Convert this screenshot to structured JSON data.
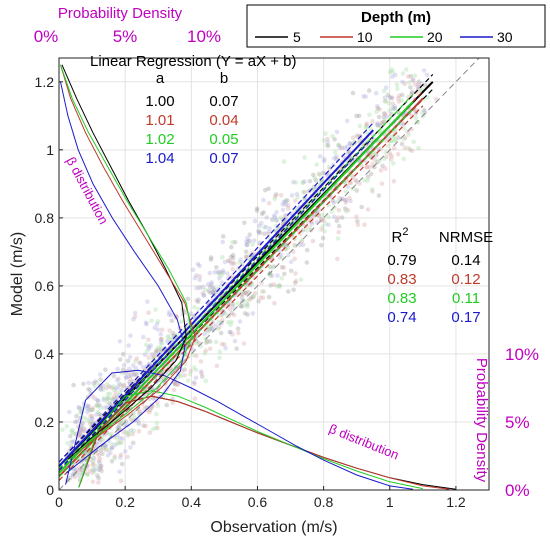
{
  "chart_data": {
    "type": "scatter",
    "xlabel": "Observation (m/s)",
    "ylabel": "Model (m/s)",
    "xlim": [
      0,
      1.3
    ],
    "ylim": [
      0,
      1.27
    ],
    "x_ticks": [
      0,
      0.2,
      0.4,
      0.6,
      0.8,
      1,
      1.2
    ],
    "y_ticks": [
      0,
      0.2,
      0.4,
      0.6,
      0.8,
      1,
      1.2
    ],
    "x_tick_labels": [
      "0",
      "0.2",
      "0.4",
      "0.6",
      "0.8",
      "1",
      "1.2"
    ],
    "y_tick_labels": [
      "0",
      "0.2",
      "0.4",
      "0.6",
      "0.8",
      "1",
      "1.2"
    ],
    "grid": true,
    "one_to_one_line": true,
    "legend": {
      "title": "Depth (m)",
      "placement": "top-right",
      "entries": [
        "5",
        "10",
        "20",
        "30"
      ]
    },
    "series_colors": [
      "#000000",
      "#c0392b",
      "#22cc22",
      "#1a1acc"
    ],
    "regression": {
      "title": "Linear Regression (Y = aX + b)",
      "col_a": "a",
      "col_b": "b",
      "rows": [
        {
          "a": "1.00",
          "b": "0.07"
        },
        {
          "a": "1.01",
          "b": "0.04"
        },
        {
          "a": "1.02",
          "b": "0.05"
        },
        {
          "a": "1.04",
          "b": "0.07"
        }
      ],
      "x_end": [
        1.13,
        1.1,
        1.07,
        0.95
      ]
    },
    "stats": {
      "r2_label": "R",
      "r2_sup": "2",
      "nrmse_label": "NRMSE",
      "rows": [
        {
          "r2": "0.79",
          "nrmse": "0.14"
        },
        {
          "r2": "0.83",
          "nrmse": "0.12"
        },
        {
          "r2": "0.83",
          "nrmse": "0.11"
        },
        {
          "r2": "0.74",
          "nrmse": "0.17"
        }
      ]
    },
    "top_density_axis": {
      "title": "Probability Density",
      "tick_labels": [
        "0%",
        "5%",
        "10%"
      ]
    },
    "right_density_axis": {
      "title": "Probability Density",
      "tick_labels": [
        "0%",
        "5%",
        "10%"
      ]
    },
    "distribution_labels": {
      "observation": "β distribution",
      "model": "β distribution"
    },
    "pdf_observation": [
      {
        "x": [
          0.06,
          0.12,
          0.2,
          0.28,
          0.36,
          0.44,
          0.52,
          0.6,
          0.7,
          0.8,
          0.9,
          1.0,
          1.1,
          1.2
        ],
        "density": [
          0.2,
          4.3,
          6.4,
          6.9,
          6.5,
          5.8,
          5.0,
          4.2,
          3.3,
          2.4,
          1.6,
          0.9,
          0.4,
          0.05
        ]
      },
      {
        "x": [
          0.06,
          0.12,
          0.2,
          0.28,
          0.36,
          0.44,
          0.52,
          0.6,
          0.7,
          0.8,
          0.9,
          1.0,
          1.1,
          1.18
        ],
        "density": [
          0.2,
          4.3,
          6.4,
          6.9,
          6.5,
          5.8,
          5.0,
          4.2,
          3.3,
          2.4,
          1.6,
          0.9,
          0.3,
          0.05
        ]
      },
      {
        "x": [
          0.06,
          0.12,
          0.2,
          0.28,
          0.36,
          0.44,
          0.52,
          0.6,
          0.7,
          0.8,
          0.9,
          1.0,
          1.1
        ],
        "density": [
          0.2,
          4.6,
          6.9,
          7.3,
          6.9,
          6.1,
          5.2,
          4.3,
          3.3,
          2.3,
          1.4,
          0.6,
          0.1
        ]
      },
      {
        "x": [
          0.02,
          0.08,
          0.16,
          0.24,
          0.32,
          0.4,
          0.48,
          0.56,
          0.64,
          0.72,
          0.8,
          0.9,
          1.0,
          1.07
        ],
        "density": [
          0.4,
          6.6,
          8.6,
          8.8,
          8.4,
          7.5,
          6.5,
          5.4,
          4.3,
          3.2,
          2.2,
          1.1,
          0.3,
          0.05
        ]
      }
    ],
    "pdf_model": [
      {
        "y": [
          1.25,
          1.15,
          1.05,
          0.95,
          0.85,
          0.75,
          0.65,
          0.55,
          0.45,
          0.38,
          0.3,
          0.22,
          0.15,
          0.09
        ],
        "density": [
          0.2,
          1.2,
          2.3,
          3.5,
          4.7,
          6.0,
          7.2,
          8.3,
          8.6,
          7.9,
          6.2,
          4.1,
          2.1,
          0.6
        ]
      },
      {
        "y": [
          1.25,
          1.15,
          1.05,
          0.95,
          0.85,
          0.75,
          0.65,
          0.55,
          0.45,
          0.38,
          0.3,
          0.22,
          0.15,
          0.09
        ],
        "density": [
          0.1,
          0.8,
          1.8,
          3.0,
          4.3,
          5.7,
          7.1,
          8.5,
          9.2,
          8.6,
          6.9,
          4.6,
          2.4,
          0.7
        ]
      },
      {
        "y": [
          1.25,
          1.15,
          1.05,
          0.95,
          0.85,
          0.75,
          0.65,
          0.55,
          0.45,
          0.38,
          0.3,
          0.22,
          0.15,
          0.09
        ],
        "density": [
          0.1,
          0.9,
          2.0,
          3.3,
          4.6,
          6.0,
          7.4,
          8.6,
          9.0,
          8.3,
          6.6,
          4.4,
          2.3,
          0.7
        ]
      },
      {
        "y": [
          1.2,
          1.1,
          1.0,
          0.9,
          0.8,
          0.7,
          0.6,
          0.5,
          0.42,
          0.35,
          0.28,
          0.2,
          0.13,
          0.05
        ],
        "density": [
          0.1,
          0.6,
          1.3,
          2.3,
          3.6,
          5.1,
          6.7,
          8.0,
          8.5,
          8.2,
          7.0,
          5.0,
          2.8,
          0.5
        ]
      }
    ]
  }
}
